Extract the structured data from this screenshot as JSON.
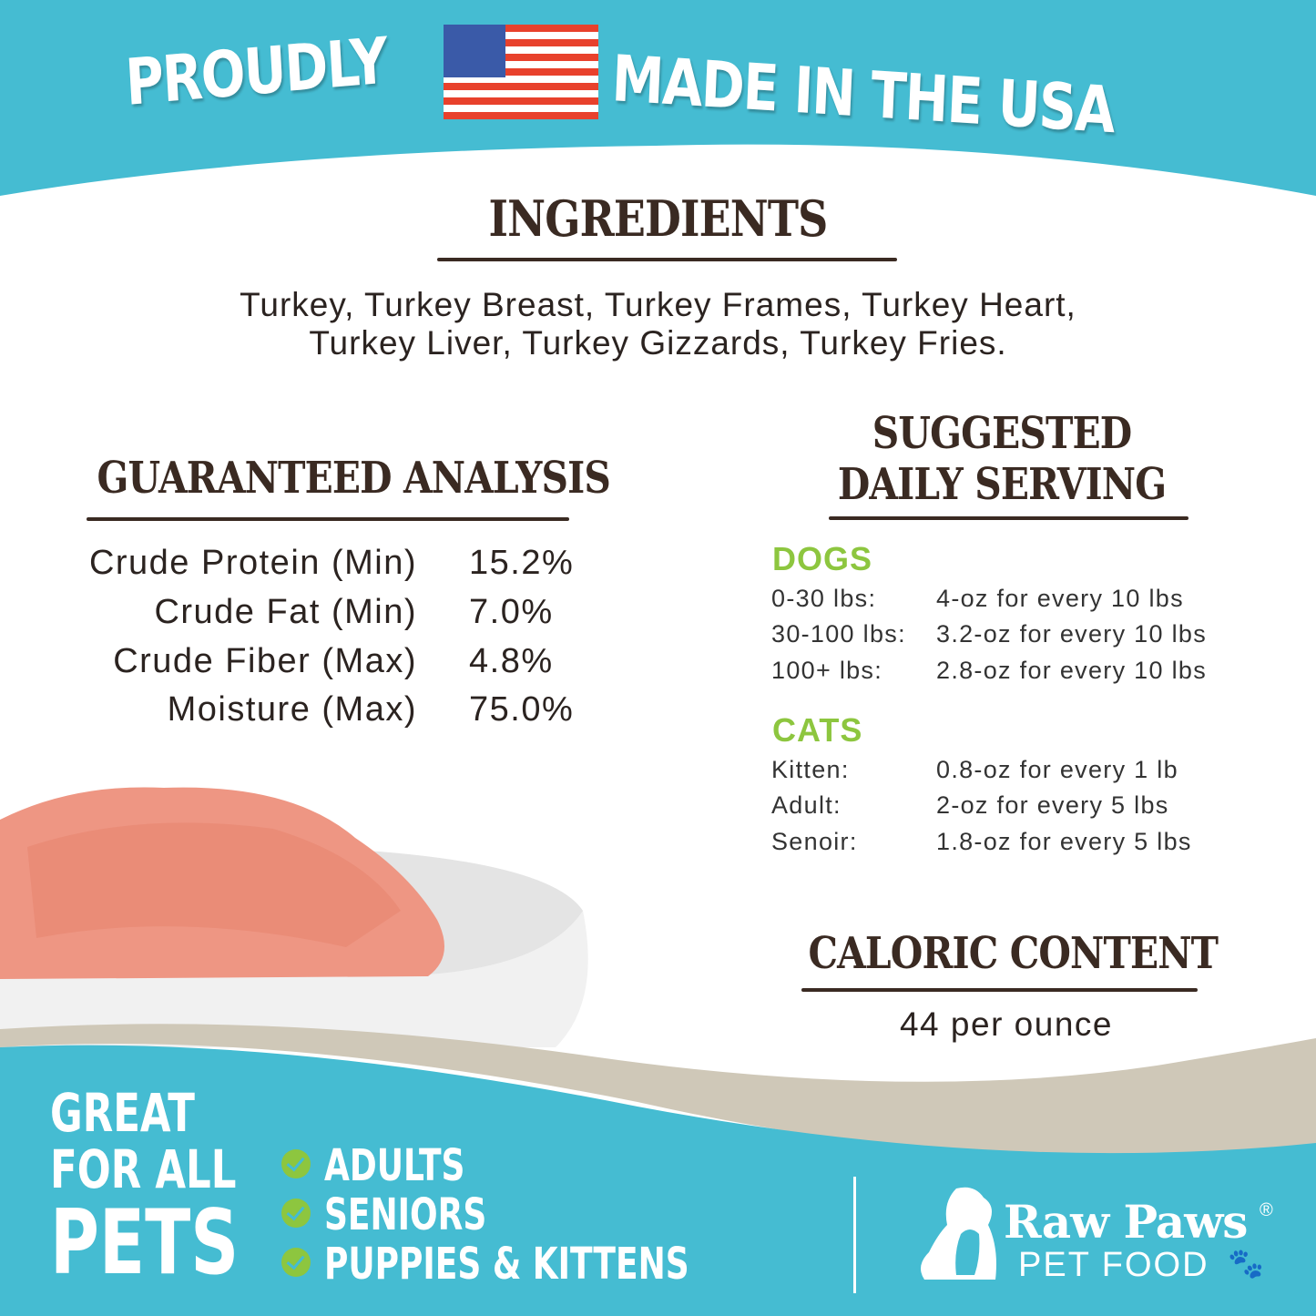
{
  "header": {
    "left": "PROUDLY",
    "right": "MADE IN THE USA",
    "flag_icon": "us-flag-icon"
  },
  "ingredients": {
    "title": "INGREDIENTS",
    "line1": "Turkey, Turkey Breast, Turkey Frames, Turkey Heart,",
    "line2": "Turkey Liver, Turkey Gizzards, Turkey Fries."
  },
  "analysis": {
    "title": "GUARANTEED ANALYSIS",
    "rows": [
      {
        "label": "Crude Protein (Min)",
        "value": "15.2%"
      },
      {
        "label": "Crude Fat (Min)",
        "value": "7.0%"
      },
      {
        "label": "Crude Fiber (Max)",
        "value": "4.8%"
      },
      {
        "label": "Moisture (Max)",
        "value": "75.0%"
      }
    ]
  },
  "serving": {
    "title1": "SUGGESTED",
    "title2": "DAILY SERVING",
    "dogs": {
      "label": "DOGS",
      "rows": [
        {
          "weight": "0-30 lbs:",
          "amount": "4-oz for every 10 lbs"
        },
        {
          "weight": "30-100 lbs:",
          "amount": "3.2-oz for every 10 lbs"
        },
        {
          "weight": "100+ lbs:",
          "amount": "2.8-oz for every 10 lbs"
        }
      ]
    },
    "cats": {
      "label": "CATS",
      "rows": [
        {
          "weight": "Kitten:",
          "amount": "0.8-oz for every 1 lb"
        },
        {
          "weight": "Adult:",
          "amount": "2-oz for every 5 lbs"
        },
        {
          "weight": "Senoir:",
          "amount": "1.8-oz for every 5 lbs"
        }
      ]
    }
  },
  "caloric": {
    "title": "CALORIC CONTENT",
    "value": "44 per ounce"
  },
  "footer": {
    "great": "GREAT",
    "for_all": "FOR ALL",
    "pets": "PETS",
    "items": [
      "ADULTS",
      "SENIORS",
      "PUPPIES & KITTENS"
    ],
    "brand": "Raw Paws",
    "registered": "®",
    "sub": "PET FOOD"
  },
  "colors": {
    "teal": "#45bcd2",
    "brown": "#3a2a22",
    "green": "#8dc63f",
    "beige": "#cfc8b8"
  }
}
